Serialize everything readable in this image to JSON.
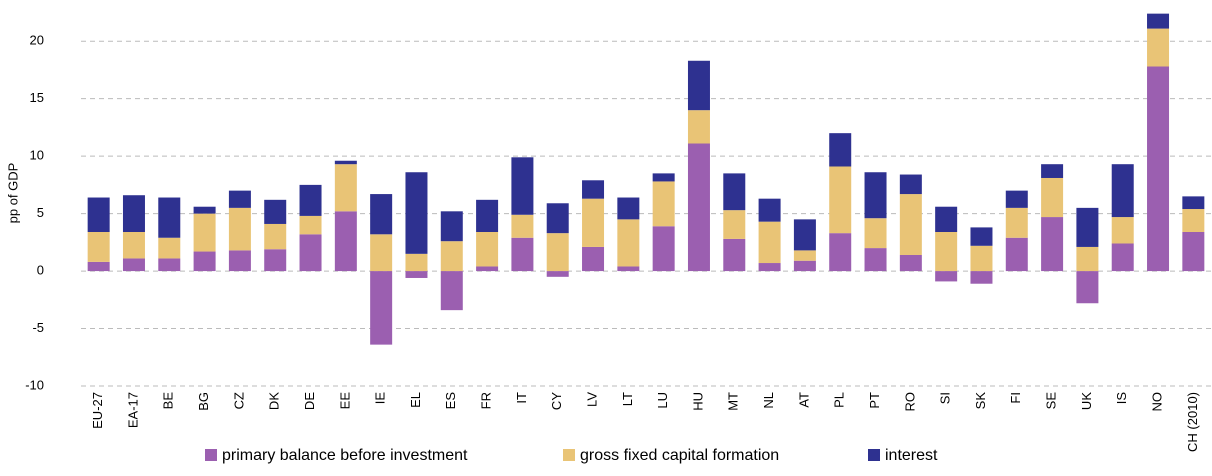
{
  "chart_data": {
    "type": "stacked_bar",
    "y_label": "pp of GDP",
    "categories": [
      "EU-27",
      "EA-17",
      "BE",
      "BG",
      "CZ",
      "DK",
      "DE",
      "EE",
      "IE",
      "EL",
      "ES",
      "FR",
      "IT",
      "CY",
      "LV",
      "LT",
      "LU",
      "HU",
      "MT",
      "NL",
      "AT",
      "PL",
      "PT",
      "RO",
      "SI",
      "SK",
      "FI",
      "SE",
      "UK",
      "IS",
      "NO",
      "CH (2010)"
    ],
    "series": [
      {
        "name": "primary balance before investment",
        "color": "#9b5fb0",
        "values": [
          0.8,
          1.1,
          1.1,
          1.7,
          1.8,
          1.9,
          3.2,
          5.2,
          -6.4,
          -0.6,
          -3.4,
          0.4,
          2.9,
          -0.5,
          2.1,
          0.4,
          3.9,
          11.1,
          2.8,
          0.7,
          0.9,
          3.3,
          2.0,
          1.4,
          -0.9,
          -1.1,
          2.9,
          4.7,
          -2.8,
          2.4,
          17.8,
          3.4
        ]
      },
      {
        "name": "gross fixed capital formation",
        "color": "#e9c476",
        "values": [
          2.6,
          2.3,
          1.8,
          3.3,
          3.7,
          2.2,
          1.6,
          4.1,
          3.2,
          1.5,
          2.6,
          3.0,
          2.0,
          3.3,
          4.2,
          4.1,
          3.9,
          2.9,
          2.5,
          3.6,
          0.9,
          5.8,
          2.6,
          5.3,
          3.4,
          2.2,
          2.6,
          3.4,
          2.1,
          2.3,
          3.3,
          2.0
        ]
      },
      {
        "name": "interest",
        "color": "#2e3190",
        "values": [
          3.0,
          3.2,
          3.5,
          0.6,
          1.5,
          2.1,
          2.7,
          0.3,
          3.5,
          7.1,
          2.6,
          2.8,
          5.0,
          2.6,
          1.6,
          1.9,
          0.7,
          4.3,
          3.2,
          2.0,
          2.7,
          2.9,
          4.0,
          1.7,
          2.2,
          1.6,
          1.5,
          1.2,
          3.4,
          4.6,
          1.3,
          1.1
        ]
      }
    ],
    "ylim": [
      -10,
      23.5
    ],
    "yticks": [
      -10,
      -5,
      0,
      5,
      10,
      15,
      20
    ],
    "grid": true
  }
}
